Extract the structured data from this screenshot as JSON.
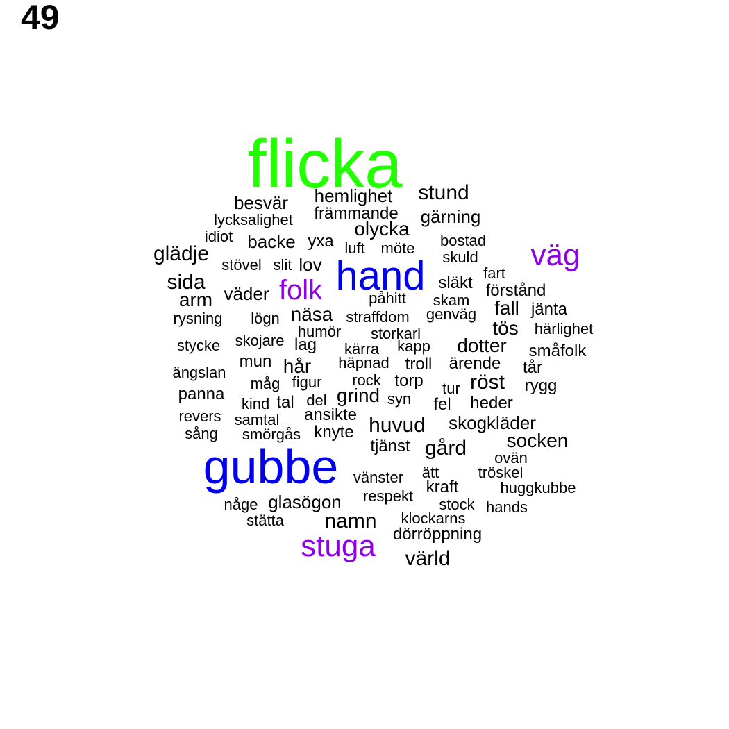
{
  "page_number": "49",
  "colors": {
    "large": "#22ff00",
    "big": "#0000ee",
    "mid": "#8f00e6",
    "small": "#000000"
  },
  "words": [
    {
      "text": "flicka",
      "color": "large"
    },
    {
      "text": "gubbe",
      "color": "big"
    },
    {
      "text": "hand",
      "color": "big"
    },
    {
      "text": "väg",
      "color": "mid"
    },
    {
      "text": "stuga",
      "color": "mid"
    },
    {
      "text": "folk",
      "color": "mid"
    },
    {
      "text": "hemlighet",
      "color": "small"
    },
    {
      "text": "stund",
      "color": "small"
    },
    {
      "text": "besvär",
      "color": "small"
    },
    {
      "text": "främmande",
      "color": "small"
    },
    {
      "text": "gärning",
      "color": "small"
    },
    {
      "text": "lycksalighet",
      "color": "small"
    },
    {
      "text": "olycka",
      "color": "small"
    },
    {
      "text": "idiot",
      "color": "small"
    },
    {
      "text": "backe",
      "color": "small"
    },
    {
      "text": "yxa",
      "color": "small"
    },
    {
      "text": "bostad",
      "color": "small"
    },
    {
      "text": "glädje",
      "color": "small"
    },
    {
      "text": "luft",
      "color": "small"
    },
    {
      "text": "möte",
      "color": "small"
    },
    {
      "text": "skuld",
      "color": "small"
    },
    {
      "text": "stövel",
      "color": "small"
    },
    {
      "text": "slit",
      "color": "small"
    },
    {
      "text": "lov",
      "color": "small"
    },
    {
      "text": "fart",
      "color": "small"
    },
    {
      "text": "sida",
      "color": "small"
    },
    {
      "text": "släkt",
      "color": "small"
    },
    {
      "text": "förstånd",
      "color": "small"
    },
    {
      "text": "arm",
      "color": "small"
    },
    {
      "text": "väder",
      "color": "small"
    },
    {
      "text": "påhitt",
      "color": "small"
    },
    {
      "text": "skam",
      "color": "small"
    },
    {
      "text": "fall",
      "color": "small"
    },
    {
      "text": "jänta",
      "color": "small"
    },
    {
      "text": "rysning",
      "color": "small"
    },
    {
      "text": "lögn",
      "color": "small"
    },
    {
      "text": "näsa",
      "color": "small"
    },
    {
      "text": "straffdom",
      "color": "small"
    },
    {
      "text": "genväg",
      "color": "small"
    },
    {
      "text": "humör",
      "color": "small"
    },
    {
      "text": "tös",
      "color": "small"
    },
    {
      "text": "härlighet",
      "color": "small"
    },
    {
      "text": "stycke",
      "color": "small"
    },
    {
      "text": "skojare",
      "color": "small"
    },
    {
      "text": "lag",
      "color": "small"
    },
    {
      "text": "storkarl",
      "color": "small"
    },
    {
      "text": "kärra",
      "color": "small"
    },
    {
      "text": "kapp",
      "color": "small"
    },
    {
      "text": "dotter",
      "color": "small"
    },
    {
      "text": "småfolk",
      "color": "small"
    },
    {
      "text": "mun",
      "color": "small"
    },
    {
      "text": "hår",
      "color": "small"
    },
    {
      "text": "häpnad",
      "color": "small"
    },
    {
      "text": "troll",
      "color": "small"
    },
    {
      "text": "ärende",
      "color": "small"
    },
    {
      "text": "tår",
      "color": "small"
    },
    {
      "text": "ängslan",
      "color": "small"
    },
    {
      "text": "rock",
      "color": "small"
    },
    {
      "text": "torp",
      "color": "small"
    },
    {
      "text": "röst",
      "color": "small"
    },
    {
      "text": "måg",
      "color": "small"
    },
    {
      "text": "figur",
      "color": "small"
    },
    {
      "text": "tur",
      "color": "small"
    },
    {
      "text": "rygg",
      "color": "small"
    },
    {
      "text": "panna",
      "color": "small"
    },
    {
      "text": "grind",
      "color": "small"
    },
    {
      "text": "syn",
      "color": "small"
    },
    {
      "text": "kind",
      "color": "small"
    },
    {
      "text": "tal",
      "color": "small"
    },
    {
      "text": "del",
      "color": "small"
    },
    {
      "text": "fel",
      "color": "small"
    },
    {
      "text": "heder",
      "color": "small"
    },
    {
      "text": "revers",
      "color": "small"
    },
    {
      "text": "ansikte",
      "color": "small"
    },
    {
      "text": "samtal",
      "color": "small"
    },
    {
      "text": "huvud",
      "color": "small"
    },
    {
      "text": "skogkläder",
      "color": "small"
    },
    {
      "text": "sång",
      "color": "small"
    },
    {
      "text": "smörgås",
      "color": "small"
    },
    {
      "text": "knyte",
      "color": "small"
    },
    {
      "text": "socken",
      "color": "small"
    },
    {
      "text": "tjänst",
      "color": "small"
    },
    {
      "text": "gård",
      "color": "small"
    },
    {
      "text": "ovän",
      "color": "small"
    },
    {
      "text": "vänster",
      "color": "small"
    },
    {
      "text": "ätt",
      "color": "small"
    },
    {
      "text": "tröskel",
      "color": "small"
    },
    {
      "text": "kraft",
      "color": "small"
    },
    {
      "text": "huggkubbe",
      "color": "small"
    },
    {
      "text": "respekt",
      "color": "small"
    },
    {
      "text": "någe",
      "color": "small"
    },
    {
      "text": "glasögon",
      "color": "small"
    },
    {
      "text": "stock",
      "color": "small"
    },
    {
      "text": "hands",
      "color": "small"
    },
    {
      "text": "stätta",
      "color": "small"
    },
    {
      "text": "namn",
      "color": "small"
    },
    {
      "text": "klockarns",
      "color": "small"
    },
    {
      "text": "dörröppning",
      "color": "small"
    },
    {
      "text": "värld",
      "color": "small"
    }
  ]
}
